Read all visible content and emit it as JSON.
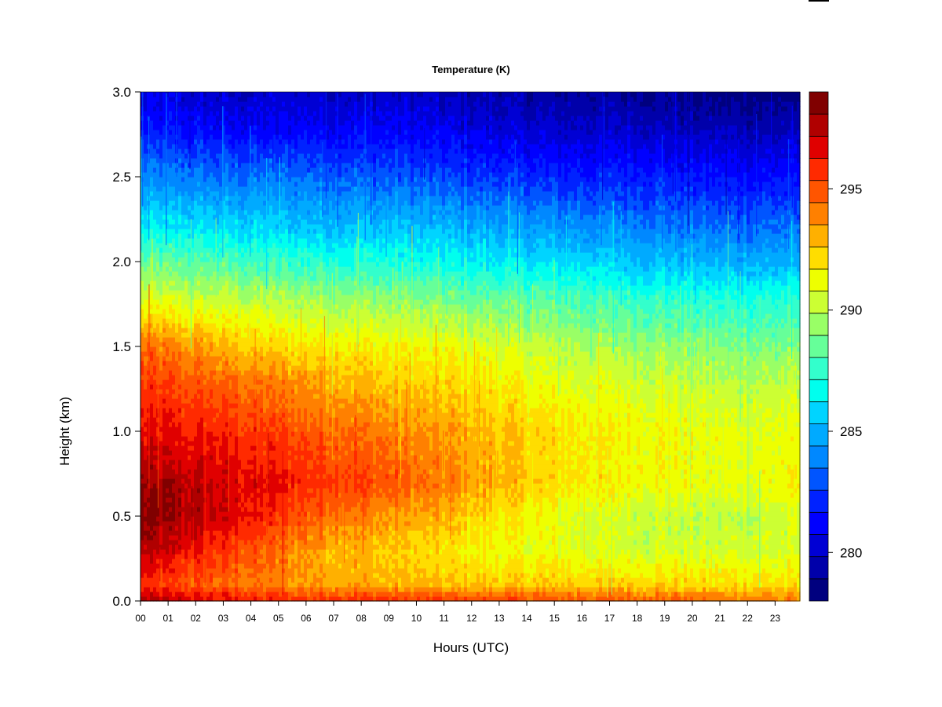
{
  "chart_data": {
    "type": "heatmap",
    "title": "Temperature (K)",
    "xlabel": "Hours (UTC)",
    "ylabel": "Height (km)",
    "x_ticks": [
      "00",
      "01",
      "02",
      "03",
      "04",
      "05",
      "06",
      "07",
      "08",
      "09",
      "10",
      "11",
      "12",
      "13",
      "14",
      "15",
      "16",
      "17",
      "18",
      "19",
      "20",
      "21",
      "22",
      "23"
    ],
    "x_range": [
      0,
      23.9
    ],
    "y_ticks": [
      "0.0",
      "0.5",
      "1.0",
      "1.5",
      "2.0",
      "2.5",
      "3.0"
    ],
    "y_range": [
      0,
      3.0
    ],
    "colorbar": {
      "range": [
        278,
        299
      ],
      "tick_values": [
        280,
        285,
        290,
        295
      ],
      "tick_labels": [
        "280",
        "285",
        "290",
        "295"
      ],
      "colors": [
        "#00007F",
        "#0000AA",
        "#0000D4",
        "#0000FF",
        "#0022FF",
        "#0055FF",
        "#0088FF",
        "#00AAFF",
        "#00D4FF",
        "#00FFEE",
        "#33FFCC",
        "#66FF99",
        "#99FF66",
        "#CCFF33",
        "#EEFF00",
        "#FFDD00",
        "#FFB000",
        "#FF8000",
        "#FF5500",
        "#FF2A00",
        "#E00000",
        "#B00000",
        "#800000"
      ]
    },
    "profile_heights_km": [
      0.0,
      0.1,
      0.3,
      0.5,
      0.7,
      1.0,
      1.3,
      1.5,
      1.8,
      2.0,
      2.2,
      2.5,
      2.8,
      3.0
    ],
    "profile_hours": [
      0,
      3,
      6,
      9,
      12,
      15,
      18,
      21,
      23.9
    ],
    "temperature_K": [
      [
        297.5,
        295.5,
        297.5,
        298.5,
        298.0,
        296.5,
        295.5,
        294.5,
        290.5,
        288.5,
        286.5,
        284.0,
        281.5,
        280.5
      ],
      [
        296.5,
        294.5,
        295.5,
        297.0,
        297.0,
        296.0,
        294.5,
        293.0,
        290.0,
        288.0,
        286.0,
        283.5,
        281.0,
        280.0
      ],
      [
        296.0,
        293.5,
        293.5,
        295.0,
        296.0,
        295.0,
        293.5,
        292.0,
        289.5,
        287.5,
        285.5,
        283.5,
        281.0,
        280.0
      ],
      [
        296.0,
        293.0,
        292.5,
        293.5,
        295.0,
        294.0,
        292.5,
        291.5,
        289.0,
        287.0,
        285.5,
        283.0,
        281.0,
        280.0
      ],
      [
        295.5,
        292.5,
        291.5,
        292.5,
        293.5,
        293.0,
        292.0,
        291.0,
        288.5,
        286.5,
        285.0,
        282.5,
        280.5,
        279.5
      ],
      [
        295.0,
        292.5,
        291.0,
        291.0,
        292.0,
        292.0,
        291.0,
        290.0,
        288.0,
        286.0,
        284.5,
        282.0,
        280.0,
        279.0
      ],
      [
        295.0,
        292.5,
        290.5,
        290.5,
        291.5,
        291.5,
        290.5,
        289.5,
        287.5,
        285.5,
        284.0,
        282.0,
        280.0,
        279.0
      ],
      [
        294.5,
        292.0,
        290.5,
        290.0,
        291.0,
        291.0,
        290.0,
        289.0,
        287.0,
        285.0,
        283.5,
        281.5,
        279.5,
        278.5
      ],
      [
        294.0,
        292.0,
        290.5,
        290.5,
        291.5,
        291.0,
        290.0,
        289.0,
        287.0,
        285.0,
        283.5,
        281.5,
        279.5,
        278.5
      ]
    ]
  }
}
